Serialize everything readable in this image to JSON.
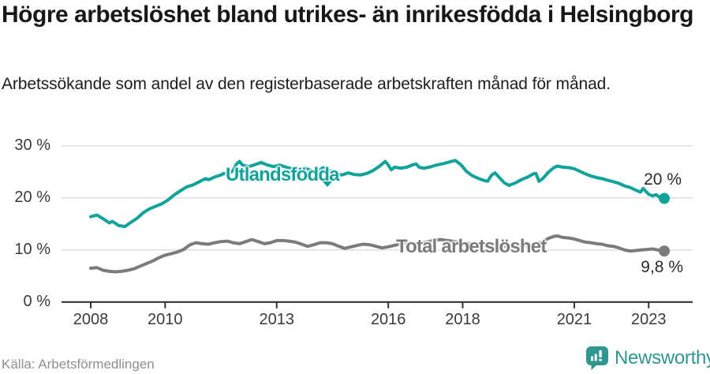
{
  "header": {
    "title": "Högre arbetslöshet bland utrikes- än inrikesfödda i Helsingborg",
    "subtitle": "Arbetssökande som andel av den registerbaserade arbetskraften månad för månad."
  },
  "chart_data": {
    "type": "line",
    "title": "Högre arbetslöshet bland utrikes- än inrikesfödda i Helsingborg",
    "unit": "percent",
    "grid": true,
    "ylim": [
      0,
      30
    ],
    "xlim": [
      2008,
      2023.6
    ],
    "y_ticks": [
      30,
      20,
      10,
      0
    ],
    "y_tick_labels": [
      "30 %",
      "20 %",
      "10 %",
      "0 %"
    ],
    "x_ticks": [
      2008,
      2010,
      2013,
      2016,
      2018,
      2021,
      2023
    ],
    "x_tick_labels": [
      "2008",
      "2010",
      "2013",
      "2016",
      "2018",
      "2021",
      "2023"
    ],
    "series": [
      {
        "name": "Utlandsfödda",
        "color": "#10a39a",
        "end_label": "20 %",
        "end_value": 20,
        "points": [
          [
            2008.0,
            16.4
          ],
          [
            2008.17,
            16.7
          ],
          [
            2008.33,
            16.0
          ],
          [
            2008.5,
            15.2
          ],
          [
            2008.58,
            15.5
          ],
          [
            2008.75,
            14.7
          ],
          [
            2008.92,
            14.5
          ],
          [
            2009.08,
            15.3
          ],
          [
            2009.25,
            16.1
          ],
          [
            2009.42,
            17.2
          ],
          [
            2009.58,
            17.9
          ],
          [
            2009.75,
            18.4
          ],
          [
            2009.92,
            18.9
          ],
          [
            2010.08,
            19.6
          ],
          [
            2010.25,
            20.6
          ],
          [
            2010.42,
            21.4
          ],
          [
            2010.58,
            22.1
          ],
          [
            2010.75,
            22.5
          ],
          [
            2010.92,
            23.1
          ],
          [
            2011.08,
            23.7
          ],
          [
            2011.17,
            23.5
          ],
          [
            2011.33,
            24.0
          ],
          [
            2011.5,
            24.4
          ],
          [
            2011.58,
            24.7
          ],
          [
            2011.7,
            24.5
          ],
          [
            2011.83,
            25.3
          ],
          [
            2011.92,
            26.5
          ],
          [
            2012.0,
            27.0
          ],
          [
            2012.08,
            26.3
          ],
          [
            2012.25,
            26.0
          ],
          [
            2012.42,
            26.4
          ],
          [
            2012.58,
            26.8
          ],
          [
            2012.75,
            26.3
          ],
          [
            2012.92,
            26.0
          ],
          [
            2013.08,
            26.3
          ],
          [
            2013.25,
            25.9
          ],
          [
            2013.42,
            25.6
          ],
          [
            2013.58,
            25.4
          ],
          [
            2013.75,
            25.7
          ],
          [
            2013.92,
            25.3
          ],
          [
            2014.08,
            25.0
          ],
          [
            2014.25,
            25.8
          ],
          [
            2014.42,
            25.3
          ],
          [
            2014.58,
            24.7
          ],
          [
            2014.75,
            24.4
          ],
          [
            2014.92,
            24.8
          ],
          [
            2015.08,
            24.5
          ],
          [
            2015.25,
            24.4
          ],
          [
            2015.42,
            24.7
          ],
          [
            2015.58,
            25.2
          ],
          [
            2015.75,
            26.0
          ],
          [
            2015.92,
            27.0
          ],
          [
            2016.0,
            26.3
          ],
          [
            2016.08,
            25.4
          ],
          [
            2016.17,
            25.9
          ],
          [
            2016.33,
            25.7
          ],
          [
            2016.5,
            25.9
          ],
          [
            2016.67,
            26.4
          ],
          [
            2016.75,
            26.5
          ],
          [
            2016.83,
            25.9
          ],
          [
            2016.95,
            25.7
          ],
          [
            2017.1,
            25.9
          ],
          [
            2017.3,
            26.3
          ],
          [
            2017.5,
            26.6
          ],
          [
            2017.7,
            27.0
          ],
          [
            2017.8,
            27.2
          ],
          [
            2017.95,
            26.4
          ],
          [
            2018.1,
            25.1
          ],
          [
            2018.25,
            24.3
          ],
          [
            2018.4,
            23.8
          ],
          [
            2018.55,
            23.4
          ],
          [
            2018.67,
            23.2
          ],
          [
            2018.78,
            24.4
          ],
          [
            2018.87,
            24.8
          ],
          [
            2019.0,
            23.8
          ],
          [
            2019.12,
            22.9
          ],
          [
            2019.25,
            22.4
          ],
          [
            2019.42,
            22.9
          ],
          [
            2019.58,
            23.5
          ],
          [
            2019.75,
            24.0
          ],
          [
            2019.9,
            24.6
          ],
          [
            2019.97,
            24.7
          ],
          [
            2020.05,
            23.2
          ],
          [
            2020.15,
            23.7
          ],
          [
            2020.3,
            24.9
          ],
          [
            2020.45,
            25.8
          ],
          [
            2020.55,
            26.1
          ],
          [
            2020.7,
            25.9
          ],
          [
            2020.85,
            25.8
          ],
          [
            2021.0,
            25.6
          ],
          [
            2021.15,
            25.1
          ],
          [
            2021.3,
            24.6
          ],
          [
            2021.45,
            24.2
          ],
          [
            2021.6,
            23.9
          ],
          [
            2021.75,
            23.7
          ],
          [
            2021.9,
            23.4
          ],
          [
            2022.05,
            23.1
          ],
          [
            2022.2,
            22.8
          ],
          [
            2022.35,
            22.3
          ],
          [
            2022.5,
            22.0
          ],
          [
            2022.65,
            21.5
          ],
          [
            2022.78,
            21.1
          ],
          [
            2022.85,
            21.8
          ],
          [
            2023.0,
            20.7
          ],
          [
            2023.1,
            20.4
          ],
          [
            2023.2,
            20.6
          ],
          [
            2023.3,
            20.1
          ],
          [
            2023.42,
            19.9
          ]
        ]
      },
      {
        "name": "Total arbetslöshet",
        "color": "#7b7b7b",
        "end_label": "9,8 %",
        "end_value": 9.8,
        "points": [
          [
            2008.0,
            6.5
          ],
          [
            2008.17,
            6.6
          ],
          [
            2008.33,
            6.1
          ],
          [
            2008.5,
            5.9
          ],
          [
            2008.67,
            5.8
          ],
          [
            2008.83,
            5.9
          ],
          [
            2009.0,
            6.1
          ],
          [
            2009.17,
            6.4
          ],
          [
            2009.33,
            6.9
          ],
          [
            2009.5,
            7.4
          ],
          [
            2009.67,
            7.9
          ],
          [
            2009.83,
            8.5
          ],
          [
            2010.0,
            9.0
          ],
          [
            2010.17,
            9.3
          ],
          [
            2010.33,
            9.6
          ],
          [
            2010.5,
            10.1
          ],
          [
            2010.67,
            11.0
          ],
          [
            2010.83,
            11.4
          ],
          [
            2011.0,
            11.2
          ],
          [
            2011.17,
            11.1
          ],
          [
            2011.33,
            11.4
          ],
          [
            2011.5,
            11.6
          ],
          [
            2011.67,
            11.7
          ],
          [
            2011.83,
            11.4
          ],
          [
            2012.0,
            11.2
          ],
          [
            2012.17,
            11.6
          ],
          [
            2012.33,
            12.0
          ],
          [
            2012.5,
            11.6
          ],
          [
            2012.67,
            11.2
          ],
          [
            2012.83,
            11.4
          ],
          [
            2013.0,
            11.8
          ],
          [
            2013.17,
            11.8
          ],
          [
            2013.33,
            11.7
          ],
          [
            2013.5,
            11.5
          ],
          [
            2013.67,
            11.1
          ],
          [
            2013.83,
            10.7
          ],
          [
            2014.0,
            11.0
          ],
          [
            2014.17,
            11.4
          ],
          [
            2014.33,
            11.4
          ],
          [
            2014.5,
            11.2
          ],
          [
            2014.67,
            10.7
          ],
          [
            2014.83,
            10.3
          ],
          [
            2015.0,
            10.6
          ],
          [
            2015.17,
            10.9
          ],
          [
            2015.33,
            11.1
          ],
          [
            2015.5,
            11.0
          ],
          [
            2015.67,
            10.7
          ],
          [
            2015.83,
            10.4
          ],
          [
            2016.0,
            10.6
          ],
          [
            2016.17,
            10.9
          ],
          [
            2016.33,
            11.2
          ],
          [
            2016.5,
            11.4
          ],
          [
            2016.67,
            11.3
          ],
          [
            2016.83,
            11.1
          ],
          [
            2017.0,
            11.5
          ],
          [
            2017.2,
            11.8
          ],
          [
            2017.4,
            12.0
          ],
          [
            2017.6,
            11.8
          ],
          [
            2017.8,
            11.6
          ],
          [
            2018.0,
            11.4
          ],
          [
            2018.2,
            11.2
          ],
          [
            2018.4,
            11.0
          ],
          [
            2018.6,
            10.9
          ],
          [
            2018.8,
            11.1
          ],
          [
            2019.0,
            10.8
          ],
          [
            2019.2,
            10.6
          ],
          [
            2019.4,
            10.5
          ],
          [
            2019.6,
            10.7
          ],
          [
            2019.8,
            10.9
          ],
          [
            2020.0,
            11.2
          ],
          [
            2020.15,
            11.6
          ],
          [
            2020.3,
            12.2
          ],
          [
            2020.45,
            12.6
          ],
          [
            2020.55,
            12.7
          ],
          [
            2020.7,
            12.4
          ],
          [
            2020.85,
            12.3
          ],
          [
            2021.0,
            12.1
          ],
          [
            2021.15,
            11.8
          ],
          [
            2021.3,
            11.5
          ],
          [
            2021.45,
            11.4
          ],
          [
            2021.6,
            11.2
          ],
          [
            2021.75,
            11.1
          ],
          [
            2021.9,
            10.8
          ],
          [
            2022.05,
            10.7
          ],
          [
            2022.2,
            10.4
          ],
          [
            2022.35,
            10.0
          ],
          [
            2022.5,
            9.8
          ],
          [
            2022.65,
            9.9
          ],
          [
            2022.8,
            10.0
          ],
          [
            2022.95,
            10.1
          ],
          [
            2023.1,
            10.2
          ],
          [
            2023.25,
            10.0
          ],
          [
            2023.42,
            9.8
          ]
        ]
      }
    ],
    "colors": {
      "accent_teal": "#10a39a",
      "series_gray": "#7b7b7b",
      "gridline": "#dcdcdc",
      "axis": "#333333"
    }
  },
  "footer": {
    "source": "Källa: Arbetsförmedlingen",
    "brand": "Newsworthy"
  }
}
